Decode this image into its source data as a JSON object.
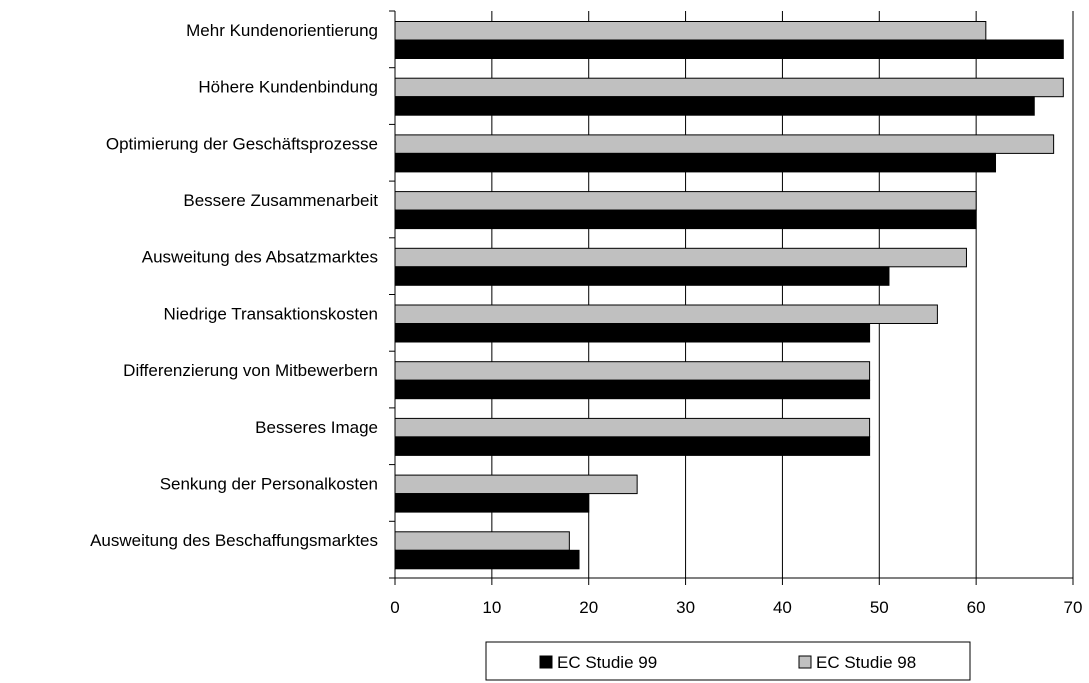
{
  "chart_data": {
    "type": "bar",
    "orientation": "horizontal",
    "categories": [
      "Mehr Kundenorientierung",
      "Höhere Kundenbindung",
      "Optimierung der Geschäftsprozesse",
      "Bessere Zusammenarbeit",
      "Ausweitung des Absatzmarktes",
      "Niedrige Transaktionskosten",
      "Differenzierung von Mitbewerbern",
      "Besseres Image",
      "Senkung der Personalkosten",
      "Ausweitung des Beschaffungsmarktes"
    ],
    "series": [
      {
        "name": "EC Studie 98",
        "color": "#c0c0c0",
        "values": [
          61,
          69,
          68,
          60,
          59,
          56,
          49,
          49,
          25,
          18
        ]
      },
      {
        "name": "EC Studie 99",
        "color": "#000000",
        "values": [
          69,
          66,
          62,
          60,
          51,
          49,
          49,
          49,
          20,
          19
        ]
      }
    ],
    "xlim": [
      0,
      70
    ],
    "xticks": [
      "0",
      "10",
      "20",
      "30",
      "40",
      "50",
      "60",
      "70"
    ],
    "grid": "vertical",
    "legend": {
      "placement": "bottom",
      "entries": [
        {
          "name": "EC Studie 99",
          "color": "#000000"
        },
        {
          "name": "EC Studie 98",
          "color": "#c0c0c0"
        }
      ]
    },
    "title": "",
    "xlabel": "",
    "ylabel": ""
  }
}
